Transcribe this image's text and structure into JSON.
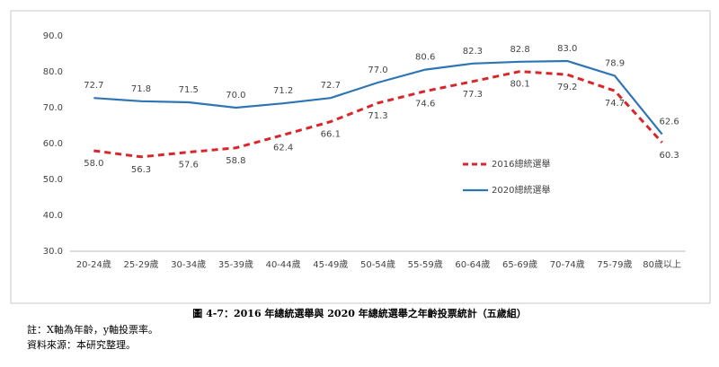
{
  "chart_data": {
    "type": "line",
    "categories": [
      "20-24歲",
      "25-29歲",
      "30-34歲",
      "35-39歲",
      "40-44歲",
      "45-49歲",
      "50-54歲",
      "55-59歲",
      "60-64歲",
      "65-69歲",
      "70-74歲",
      "75-79歲",
      "80歲以上"
    ],
    "series": [
      {
        "name": "2016總統選舉",
        "color": "#d9262b",
        "dashed": true,
        "values": [
          58.0,
          56.3,
          57.6,
          58.8,
          62.4,
          66.1,
          71.3,
          74.6,
          77.3,
          80.1,
          79.2,
          74.7,
          60.3
        ],
        "value_labels": [
          "58.0",
          "56.3",
          "57.6",
          "58.8",
          "62.4",
          "66.1",
          "71.3",
          "74.6",
          "77.3",
          "80.1",
          "79.2",
          "74.7",
          "60.3"
        ]
      },
      {
        "name": "2020總統選舉",
        "color": "#2e75b6",
        "dashed": false,
        "values": [
          72.7,
          71.8,
          71.5,
          70.0,
          71.2,
          72.7,
          77.0,
          80.6,
          82.3,
          82.8,
          83.0,
          78.9,
          62.6
        ],
        "value_labels": [
          "72.7",
          "71.8",
          "71.5",
          "70.0",
          "71.2",
          "72.7",
          "77.0",
          "80.6",
          "82.3",
          "82.8",
          "83.0",
          "78.9",
          "62.6"
        ]
      }
    ],
    "ylim": [
      30,
      90
    ],
    "yticks": [
      {
        "value": 30,
        "label": "30.0"
      },
      {
        "value": 40,
        "label": "40.0"
      },
      {
        "value": 50,
        "label": "50.0"
      },
      {
        "value": 60,
        "label": "60.0"
      },
      {
        "value": 70,
        "label": "70.0"
      },
      {
        "value": 80,
        "label": "80.0"
      },
      {
        "value": 90,
        "label": "90.0"
      }
    ],
    "grid": false
  },
  "caption": "圖 4-7：2016 年總統選舉與 2020 年總統選舉之年齡投票統計（五歲組）",
  "notes": [
    "註：X軸為年齡，y軸投票率。",
    "資料來源：本研究整理。"
  ]
}
